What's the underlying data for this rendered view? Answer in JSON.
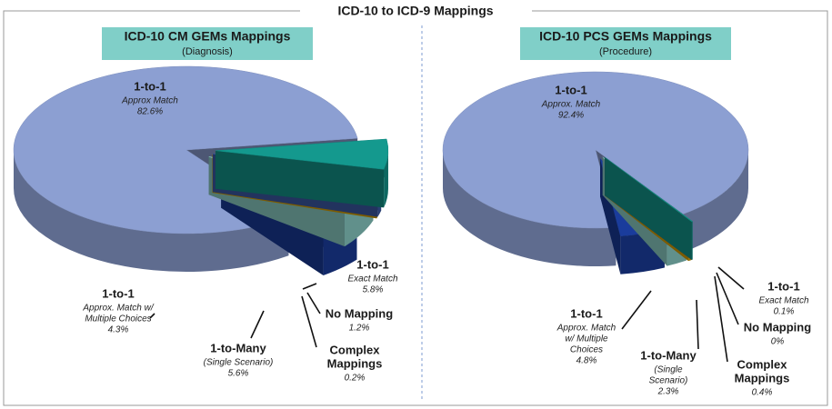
{
  "title": "ICD-10 to ICD-9 Mappings",
  "chart_data": [
    {
      "type": "pie",
      "title": "ICD-10 CM GEMs Mappings",
      "subtitle": "(Diagnosis)",
      "categories": [
        [
          "1-to-1",
          "Approx Match"
        ],
        [
          "1-to-1",
          "Exact Match"
        ],
        [
          "No Mapping"
        ],
        [
          "Complex",
          "Mappings"
        ],
        [
          "1-to-Many",
          "(Single Scenario)"
        ],
        [
          "1-to-1",
          "Approx. Match w/",
          "Multiple Choices"
        ]
      ],
      "values": [
        82.6,
        5.8,
        1.2,
        0.2,
        5.6,
        4.3
      ],
      "value_labels": [
        "82.6%",
        "5.8%",
        "1.2%",
        "0.2%",
        "5.6%",
        "4.3%"
      ],
      "colors": [
        "#8c9fd2",
        "#14998e",
        "#3d5cab",
        "#e1a600",
        "#8fd4cc",
        "#1a3c9c"
      ]
    },
    {
      "type": "pie",
      "title": "ICD-10 PCS GEMs Mappings",
      "subtitle": "(Procedure)",
      "categories": [
        [
          "1-to-1",
          "Approx. Match"
        ],
        [
          "1-to-1",
          "Exact Match"
        ],
        [
          "No Mapping"
        ],
        [
          "Complex",
          "Mappings"
        ],
        [
          "1-to-Many",
          "(Single",
          "Scenario)"
        ],
        [
          "1-to-1",
          "Approx. Match",
          "w/ Multiple",
          "Choices"
        ]
      ],
      "values": [
        92.4,
        0.1,
        0,
        0.4,
        2.3,
        4.8
      ],
      "value_labels": [
        "92.4%",
        "0.1%",
        "0%",
        "0.4%",
        "2.3%",
        "4.8%"
      ],
      "colors": [
        "#8c9fd2",
        "#14998e",
        "#3d5cab",
        "#e1a600",
        "#8fd4cc",
        "#1a3c9c"
      ]
    }
  ]
}
